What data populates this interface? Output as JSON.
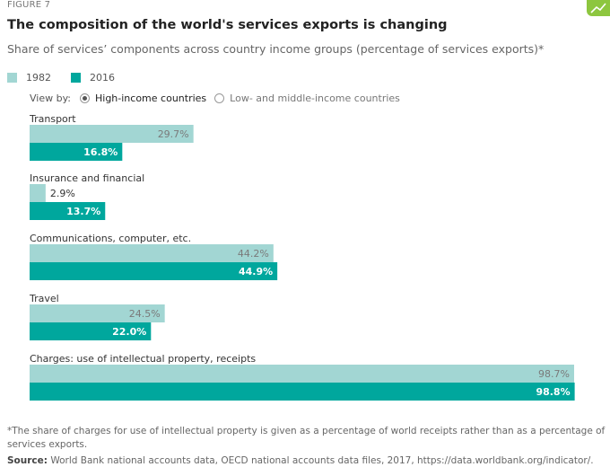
{
  "figure_label": "FIGURE 7",
  "view_by": {
    "label": "View by:",
    "options": [
      "High-income countries",
      "Low- and middle-income countries"
    ],
    "selected": "High-income countries"
  },
  "colors": {
    "s1982": "#a2d6d3",
    "s2016": "#00a79d",
    "label_1982": "#7a7a7a",
    "label_2016": "#ffffff",
    "label_outside": "#333333"
  },
  "chart_data": {
    "type": "bar",
    "orientation": "horizontal",
    "title": "The composition of the world's services exports is changing",
    "subtitle": "Share of services’ components across country income groups (percentage of services exports)*",
    "categories": [
      "Transport",
      "Insurance and financial",
      "Communications, computer, etc.",
      "Travel",
      "Charges: use of intellectual property, receipts"
    ],
    "series": [
      {
        "name": "1982",
        "values": [
          29.7,
          2.9,
          44.2,
          24.5,
          98.7
        ],
        "labels": [
          "29.7%",
          "2.9%",
          "44.2%",
          "24.5%",
          "98.7%"
        ]
      },
      {
        "name": "2016",
        "values": [
          16.8,
          13.7,
          44.9,
          22.0,
          98.8
        ],
        "labels": [
          "16.8%",
          "13.7%",
          "44.9%",
          "22.0%",
          "98.8%"
        ]
      }
    ],
    "xlim": [
      0,
      100
    ],
    "legend_position": "top-left",
    "grid": false
  },
  "footnote": "*The share of charges for use of intellectual property is given as a percentage of world receipts rather than as a percentage of services exports.",
  "source": {
    "label": "Source:",
    "text": "World Bank national accounts data, OECD national accounts data files, 2017, https://data.worldbank.org/indicator/."
  }
}
